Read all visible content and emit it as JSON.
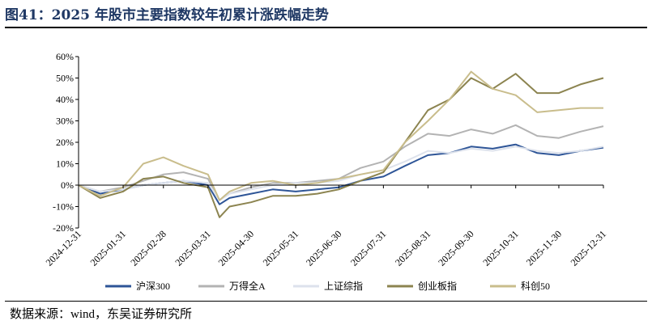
{
  "title": "图41：2025 年股市主要指数较年初累计涨跌幅走势",
  "source": "数据来源：wind，东吴证券研究所",
  "chart_data": {
    "type": "line",
    "title": "图41：2025 年股市主要指数较年初累计涨跌幅走势",
    "xlabel": "",
    "ylabel": "",
    "ylim": [
      -20,
      60
    ],
    "yticks": [
      "-20%",
      "-10%",
      "0%",
      "10%",
      "20%",
      "30%",
      "40%",
      "50%",
      "60%"
    ],
    "yunit": "%",
    "xticks": [
      "2024-12-31",
      "2025-01-31",
      "2025-02-28",
      "2025-03-31",
      "2025-04-30",
      "2025-05-31",
      "2025-06-30",
      "2025-07-31",
      "2025-08-31",
      "2025-09-30",
      "2025-10-31",
      "2025-11-30",
      "2025-12-31"
    ],
    "grid": false,
    "legend": "bottom",
    "x": [
      "2024-12-31",
      "2025-01-15",
      "2025-01-31",
      "2025-02-14",
      "2025-02-28",
      "2025-03-14",
      "2025-03-31",
      "2025-04-08",
      "2025-04-15",
      "2025-04-30",
      "2025-05-15",
      "2025-05-31",
      "2025-06-15",
      "2025-06-30",
      "2025-07-15",
      "2025-07-31",
      "2025-08-15",
      "2025-08-31",
      "2025-09-15",
      "2025-09-30",
      "2025-10-15",
      "2025-10-31",
      "2025-11-15",
      "2025-11-30",
      "2025-12-15",
      "2025-12-31"
    ],
    "series": [
      {
        "name": "沪深300",
        "color": "#2e5597",
        "values": [
          0,
          -4,
          -2,
          0,
          1,
          2,
          0,
          -9,
          -6,
          -4,
          -2,
          -3,
          -2,
          -1,
          2,
          4,
          9,
          14,
          15,
          18,
          17,
          19,
          15,
          14,
          16,
          17.5
        ]
      },
      {
        "name": "万得全A",
        "color": "#b3b3b3",
        "values": [
          0,
          -3,
          -1,
          2,
          5,
          6,
          3,
          -7,
          -4,
          -1,
          1,
          1,
          2,
          3,
          8,
          11,
          18,
          24,
          23,
          26,
          24,
          28,
          23,
          22,
          25,
          27.5
        ]
      },
      {
        "name": "上证综指",
        "color": "#dde2ec",
        "values": [
          0,
          -3,
          -2,
          0,
          1,
          2,
          1,
          -7,
          -4,
          -2,
          0,
          1,
          1,
          2,
          5,
          7,
          11,
          16,
          15,
          17,
          16,
          18,
          16,
          15,
          16,
          18
        ]
      },
      {
        "name": "创业板指",
        "color": "#8c8450",
        "values": [
          0,
          -6,
          -3,
          3,
          4,
          1,
          -1,
          -15,
          -10,
          -8,
          -5,
          -5,
          -4,
          -2,
          2,
          6,
          20,
          35,
          40,
          50,
          45,
          52,
          43,
          43,
          47,
          50
        ]
      },
      {
        "name": "科创50",
        "color": "#c9bd8c",
        "values": [
          0,
          -5,
          -1,
          10,
          13,
          9,
          5,
          -7,
          -3,
          1,
          2,
          0,
          1,
          3,
          5,
          7,
          20,
          30,
          40,
          53,
          45,
          42,
          34,
          35,
          36,
          36
        ]
      }
    ]
  }
}
